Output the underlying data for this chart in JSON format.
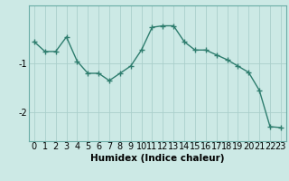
{
  "x": [
    0,
    1,
    2,
    3,
    4,
    5,
    6,
    7,
    8,
    9,
    10,
    11,
    12,
    13,
    14,
    15,
    16,
    17,
    18,
    19,
    20,
    21,
    22,
    23
  ],
  "y": [
    -0.55,
    -0.75,
    -0.75,
    -0.45,
    -0.95,
    -1.2,
    -1.2,
    -1.35,
    -1.2,
    -1.05,
    -0.72,
    -0.25,
    -0.22,
    -0.22,
    -0.55,
    -0.72,
    -0.72,
    -0.82,
    -0.92,
    -1.05,
    -1.18,
    -1.55,
    -2.3,
    -2.32
  ],
  "line_color": "#2e7d6e",
  "bg_color": "#cce9e5",
  "grid_color": "#aacfcb",
  "xlabel": "Humidex (Indice chaleur)",
  "yticks": [
    -2,
    -1
  ],
  "ylim": [
    -2.6,
    0.2
  ],
  "xlim": [
    -0.5,
    23.5
  ],
  "xlabel_fontsize": 7.5,
  "tick_fontsize": 7,
  "marker": "+",
  "linewidth": 1.0,
  "markersize": 4,
  "spine_color": "#6aada6"
}
